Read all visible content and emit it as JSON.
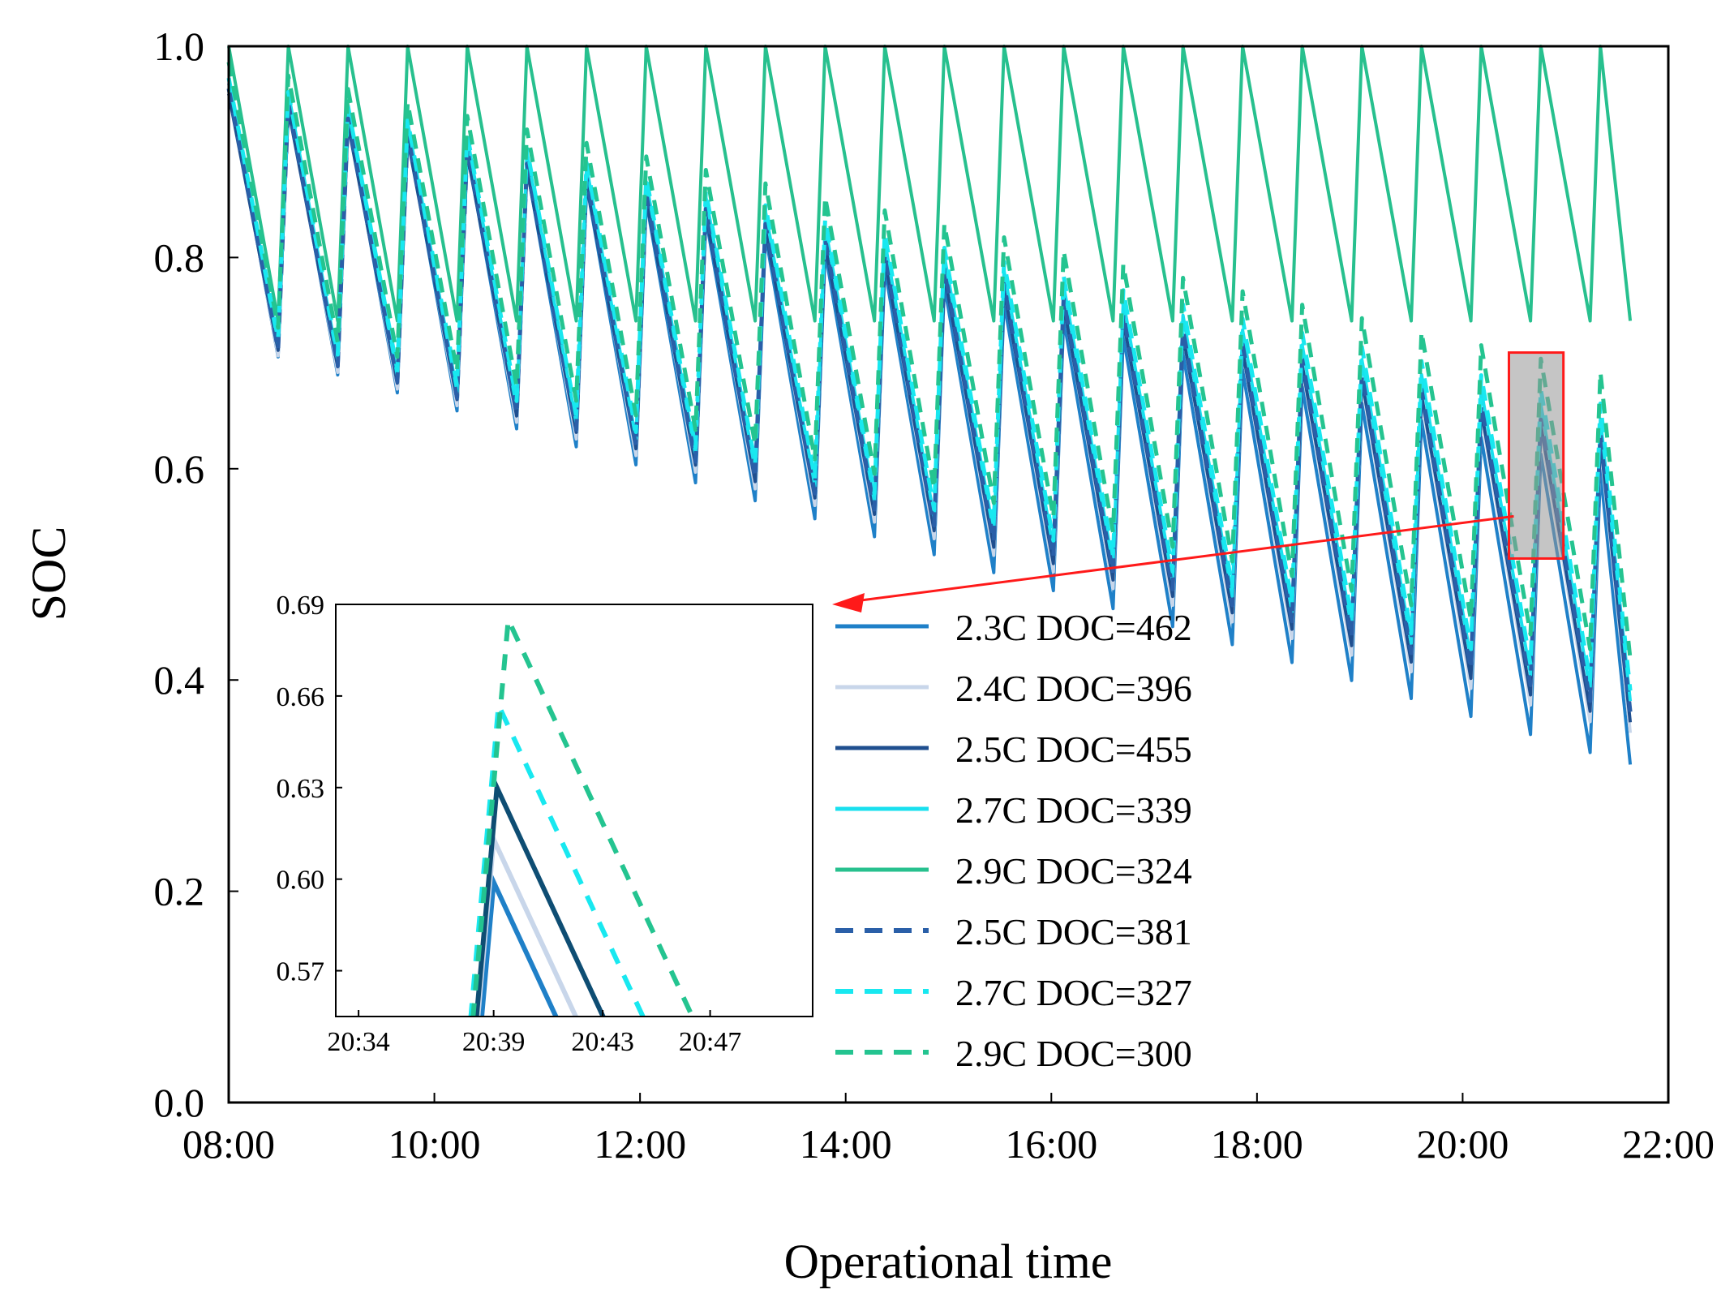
{
  "chart_data": {
    "type": "line",
    "xlabel": "Operational time",
    "ylabel": "SOC",
    "xlim": [
      8,
      22
    ],
    "ylim": [
      0,
      1
    ],
    "x_ticks": [
      {
        "value": 8,
        "label": "08:00"
      },
      {
        "value": 10,
        "label": "10:00"
      },
      {
        "value": 12,
        "label": "12:00"
      },
      {
        "value": 14,
        "label": "14:00"
      },
      {
        "value": 16,
        "label": "16:00"
      },
      {
        "value": 18,
        "label": "18:00"
      },
      {
        "value": 20,
        "label": "20:00"
      },
      {
        "value": 22,
        "label": "22:00"
      }
    ],
    "y_ticks": [
      {
        "value": 0,
        "label": "0.0"
      },
      {
        "value": 0.2,
        "label": "0.2"
      },
      {
        "value": 0.4,
        "label": "0.4"
      },
      {
        "value": 0.6,
        "label": "0.6"
      },
      {
        "value": 0.8,
        "label": "0.8"
      },
      {
        "value": 1.0,
        "label": "1.0"
      }
    ],
    "cycle": {
      "start": 8.0,
      "end": 21.63,
      "charge_hours": 0.1,
      "discharge_hours": 0.48
    },
    "series": [
      {
        "name": "2.3C DOC=462",
        "color": "#1f80c8",
        "dash": false,
        "top_start": 0.965,
        "top_end": 0.59,
        "bottom_start": 0.72,
        "bottom_end": 0.32
      },
      {
        "name": "2.4C DOC=396",
        "color": "#c8d6ea",
        "dash": false,
        "top_start": 0.965,
        "top_end": 0.615,
        "bottom_start": 0.72,
        "bottom_end": 0.35
      },
      {
        "name": "2.5C DOC=455",
        "color": "#1f4f8f",
        "dash": false,
        "top_start": 0.955,
        "top_end": 0.62,
        "bottom_start": 0.725,
        "bottom_end": 0.36
      },
      {
        "name": "2.7C DOC=339",
        "color": "#19e0ef",
        "dash": false,
        "top_start": 0.97,
        "top_end": 0.64,
        "bottom_start": 0.73,
        "bottom_end": 0.38
      },
      {
        "name": "2.9C DOC=324",
        "color": "#27c08e",
        "dash": false,
        "top_start": 1.0,
        "top_end": 1.0,
        "bottom_start": 0.74,
        "bottom_end": 0.74
      },
      {
        "name": "2.5C DOC=381",
        "color": "#2a5fa8",
        "dash": true,
        "top_start": 0.96,
        "top_end": 0.625,
        "bottom_start": 0.725,
        "bottom_end": 0.37
      },
      {
        "name": "2.7C DOC=327",
        "color": "#18e8f0",
        "dash": true,
        "top_start": 0.97,
        "top_end": 0.655,
        "bottom_start": 0.735,
        "bottom_end": 0.39
      },
      {
        "name": "2.9C DOC=300",
        "color": "#24c490",
        "dash": true,
        "top_start": 0.985,
        "top_end": 0.685,
        "bottom_start": 0.745,
        "bottom_end": 0.42
      }
    ],
    "zoom_box": {
      "x": [
        20.45,
        20.98
      ],
      "y": [
        0.515,
        0.71
      ]
    },
    "inset": {
      "xlim": [
        20.553,
        20.846
      ],
      "ylim": [
        0.555,
        0.69
      ],
      "x_ticks": [
        {
          "value": 20.567,
          "label": "20:34"
        },
        {
          "value": 20.65,
          "label": "20:39"
        },
        {
          "value": 20.717,
          "label": "20:43"
        },
        {
          "value": 20.783,
          "label": "20:47"
        }
      ],
      "y_ticks": [
        {
          "value": 0.57,
          "label": "0.57"
        },
        {
          "value": 0.6,
          "label": "0.60"
        },
        {
          "value": 0.63,
          "label": "0.63"
        },
        {
          "value": 0.66,
          "label": "0.66"
        },
        {
          "value": 0.69,
          "label": "0.69"
        }
      ],
      "series": [
        {
          "name": "2.3C DOC=462",
          "peak_x": 20.65,
          "peak_y": 0.599,
          "rise": 0.3,
          "fall": 0.23
        },
        {
          "name": "2.4C DOC=396",
          "peak_x": 20.65,
          "peak_y": 0.613,
          "rise": 0.3,
          "fall": 0.23
        },
        {
          "name": "2.5C DOC=455",
          "peak_x": 20.652,
          "peak_y": 0.63,
          "rise": 0.3,
          "fall": 0.23
        },
        {
          "name": "2.7C DOC=327",
          "peak_x": 20.653,
          "peak_y": 0.657,
          "rise": 0.3,
          "fall": 0.23
        },
        {
          "name": "2.9C DOC=300",
          "peak_x": 20.659,
          "peak_y": 0.685,
          "rise": 0.3,
          "fall": 0.23
        }
      ]
    }
  }
}
